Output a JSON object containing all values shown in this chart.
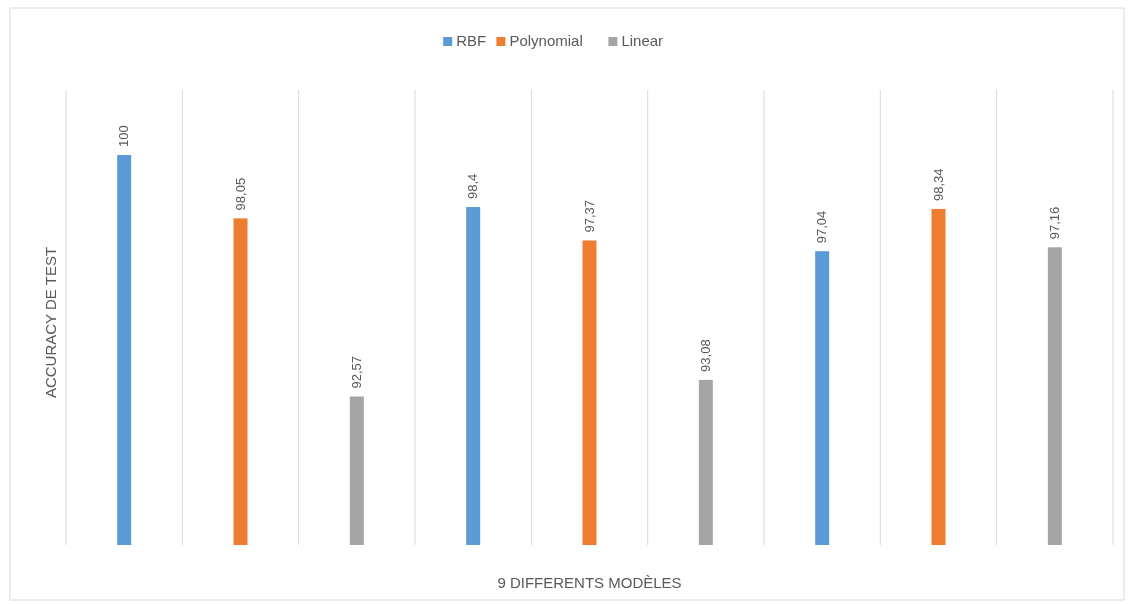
{
  "chart_data": {
    "type": "bar",
    "xlabel": "9 DIFFERENTS MODÈLES",
    "ylabel": "ACCURACY DE TEST",
    "categories": [
      null,
      null,
      null,
      null,
      null,
      null,
      null,
      null,
      null
    ],
    "series": [
      {
        "name": "RBF",
        "color": "#5b9bd5",
        "values": [
          100,
          null,
          null,
          98.4,
          null,
          null,
          97.04,
          null,
          null
        ],
        "value_labels": [
          "100",
          null,
          null,
          "98,4",
          null,
          null,
          "97,04",
          null,
          null
        ]
      },
      {
        "name": "Polynomial",
        "color": "#ed7d31",
        "values": [
          null,
          98.05,
          null,
          null,
          97.37,
          null,
          null,
          98.34,
          null
        ],
        "value_labels": [
          null,
          "98,05",
          null,
          null,
          "97,37",
          null,
          null,
          "98,34",
          null
        ]
      },
      {
        "name": "Linear",
        "color": "#a5a5a5",
        "values": [
          null,
          null,
          92.57,
          null,
          null,
          93.08,
          null,
          null,
          97.16
        ],
        "value_labels": [
          null,
          null,
          "92,57",
          null,
          null,
          "93,08",
          null,
          null,
          "97,16"
        ]
      }
    ],
    "ylim": [
      88,
      102
    ],
    "stacked": true,
    "grid": "x",
    "legend": "top"
  }
}
